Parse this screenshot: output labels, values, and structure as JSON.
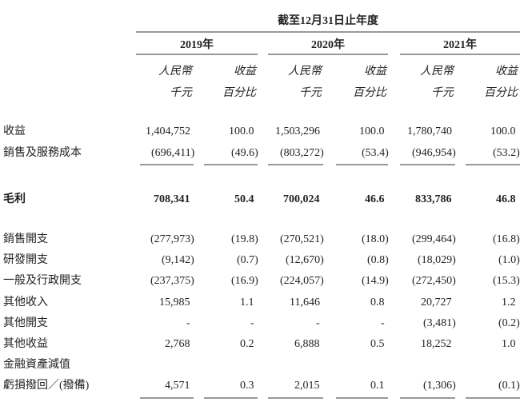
{
  "header": {
    "period": "截至12月31日止年度",
    "years": [
      "2019年",
      "2020年",
      "2021年"
    ],
    "subheaders": [
      [
        "人民幣",
        "千元"
      ],
      [
        "收益",
        "百分比"
      ],
      [
        "人民幣",
        "千元"
      ],
      [
        "收益",
        "百分比"
      ],
      [
        "人民幣",
        "千元"
      ],
      [
        "收益",
        "百分比"
      ]
    ]
  },
  "table": {
    "rows": [
      {
        "label": [
          "收益"
        ],
        "cells": [
          "1,404,752",
          "100.0",
          "1,503,296",
          "100.0",
          "1,780,740",
          "100.0"
        ]
      },
      {
        "label": [
          "銷售及服務成本"
        ],
        "cells": [
          "(696,411)",
          "(49.6)",
          "(803,272)",
          "(53.4)",
          "(946,954)",
          "(53.2)"
        ]
      },
      {
        "label": [
          "毛利"
        ],
        "cells": [
          "708,341",
          "50.4",
          "700,024",
          "46.6",
          "833,786",
          "46.8"
        ]
      },
      {
        "label": [
          "銷售開支"
        ],
        "cells": [
          "(277,973)",
          "(19.8)",
          "(270,521)",
          "(18.0)",
          "(299,464)",
          "(16.8)"
        ]
      },
      {
        "label": [
          "研發開支"
        ],
        "cells": [
          "(9,142)",
          "(0.7)",
          "(12,670)",
          "(0.8)",
          "(18,029)",
          "(1.0)"
        ]
      },
      {
        "label": [
          "一般及行政開支"
        ],
        "cells": [
          "(237,375)",
          "(16.9)",
          "(224,057)",
          "(14.9)",
          "(272,450)",
          "(15.3)"
        ]
      },
      {
        "label": [
          "其他收入"
        ],
        "cells": [
          "15,985",
          "1.1",
          "11,646",
          "0.8",
          "20,727",
          "1.2"
        ]
      },
      {
        "label": [
          "其他開支"
        ],
        "cells": [
          "-",
          "-",
          "-",
          "-",
          "(3,481)",
          "(0.2)"
        ]
      },
      {
        "label": [
          "其他收益"
        ],
        "cells": [
          "2,768",
          "0.2",
          "6,888",
          "0.5",
          "18,252",
          "1.0"
        ]
      },
      {
        "label": [
          "金融資產減值",
          "虧損撥回／(撥備)"
        ],
        "cells": [
          "4,571",
          "0.3",
          "2,015",
          "0.1",
          "(1,306)",
          "(0.1)"
        ]
      }
    ]
  }
}
